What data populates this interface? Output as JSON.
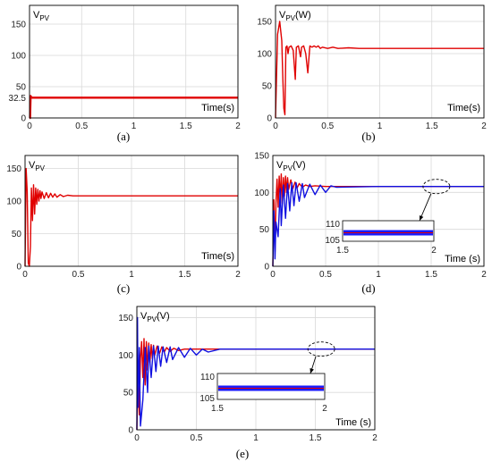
{
  "chart_data": [
    {
      "type": "line",
      "caption": "(a)",
      "ylabel": "V_PV",
      "xlabel": "Time(s)",
      "xlim": [
        0,
        2
      ],
      "ylim": [
        0,
        180
      ],
      "xticks": [
        "0",
        "0.5",
        "1",
        "1.5",
        "2"
      ],
      "yticks": [
        0,
        32.5,
        50,
        100,
        150
      ],
      "ytick_labels": [
        "0",
        "32.5",
        "50",
        "100",
        "150"
      ],
      "grid": true,
      "series": [
        {
          "color": "#e00000",
          "x": [
            0,
            0.005,
            0.01,
            0.02,
            0.5,
            1,
            1.5,
            2
          ],
          "y": [
            0,
            0,
            35,
            32.5,
            32.5,
            32.5,
            32.5,
            32.5
          ]
        }
      ]
    },
    {
      "type": "line",
      "caption": "(b)",
      "ylabel": "V_PV(W)",
      "xlabel": "Time(s)",
      "xlim": [
        0,
        2
      ],
      "ylim": [
        0,
        175
      ],
      "xticks": [
        "0",
        "0.5",
        "1",
        "1.5",
        "2"
      ],
      "yticks": [
        0,
        50,
        100,
        150
      ],
      "ytick_labels": [
        "0",
        "50",
        "100",
        "150"
      ],
      "grid": true,
      "series": [
        {
          "color": "#e00000",
          "x": [
            0,
            0.02,
            0.04,
            0.06,
            0.07,
            0.08,
            0.09,
            0.1,
            0.11,
            0.12,
            0.13,
            0.15,
            0.17,
            0.19,
            0.2,
            0.22,
            0.24,
            0.25,
            0.27,
            0.29,
            0.31,
            0.33,
            0.35,
            0.37,
            0.39,
            0.41,
            0.43,
            0.45,
            0.5,
            0.55,
            0.6,
            0.7,
            0.8,
            0.9,
            1,
            1.5,
            2
          ],
          "y": [
            0,
            130,
            150,
            120,
            60,
            15,
            5,
            110,
            112,
            100,
            110,
            112,
            105,
            60,
            110,
            112,
            95,
            110,
            112,
            100,
            70,
            112,
            110,
            112,
            110,
            112,
            108,
            110,
            108,
            110,
            108,
            109,
            108,
            108,
            108,
            108,
            108
          ]
        }
      ]
    },
    {
      "type": "line",
      "caption": "(c)",
      "ylabel": "V_PV",
      "xlabel": "Time(s)",
      "xlim": [
        0,
        2
      ],
      "ylim": [
        0,
        170
      ],
      "xticks": [
        "0",
        "0.5",
        "1",
        "1.5",
        "2"
      ],
      "yticks": [
        0,
        50,
        100,
        150
      ],
      "ytick_labels": [
        "0",
        "50",
        "100",
        "150"
      ],
      "grid": true,
      "series": [
        {
          "color": "#e00000",
          "x": [
            0,
            0.01,
            0.02,
            0.03,
            0.04,
            0.05,
            0.06,
            0.07,
            0.08,
            0.09,
            0.1,
            0.11,
            0.12,
            0.13,
            0.14,
            0.15,
            0.16,
            0.18,
            0.2,
            0.22,
            0.24,
            0.26,
            0.28,
            0.3,
            0.33,
            0.36,
            0.4,
            0.45,
            0.5,
            0.6,
            0.7,
            1,
            1.5,
            2
          ],
          "y": [
            0,
            150,
            115,
            5,
            0,
            30,
            120,
            70,
            125,
            80,
            120,
            95,
            118,
            100,
            116,
            104,
            114,
            104,
            113,
            105,
            112,
            106,
            111,
            106,
            110,
            107,
            109,
            108,
            108,
            108,
            108,
            108,
            108,
            108
          ]
        }
      ]
    },
    {
      "type": "line",
      "caption": "(d)",
      "ylabel": "V_PV(V)",
      "xlabel": "Time (s)",
      "xlim": [
        0,
        2
      ],
      "ylim": [
        0,
        150
      ],
      "xticks": [
        "0",
        "0.5",
        "1",
        "1.5",
        "2"
      ],
      "yticks": [
        0,
        50,
        100,
        150
      ],
      "ytick_labels": [
        "0",
        "50",
        "100",
        "150"
      ],
      "grid": true,
      "inset": {
        "xticks": [
          "1.5",
          "2"
        ],
        "yticks": [
          "105",
          "110"
        ]
      },
      "series": [
        {
          "color": "#e00000",
          "x": [
            0,
            0.01,
            0.02,
            0.03,
            0.04,
            0.05,
            0.06,
            0.07,
            0.08,
            0.09,
            0.1,
            0.11,
            0.12,
            0.13,
            0.14,
            0.15,
            0.17,
            0.19,
            0.21,
            0.23,
            0.25,
            0.28,
            0.31,
            0.35,
            0.4,
            0.5,
            0.6,
            1,
            1.5,
            2
          ],
          "y": [
            0,
            90,
            20,
            85,
            118,
            80,
            122,
            90,
            125,
            85,
            120,
            95,
            122,
            100,
            120,
            104,
            117,
            105,
            114,
            106,
            112,
            107,
            110,
            108,
            109,
            108,
            108,
            108,
            108,
            108
          ]
        },
        {
          "color": "#1010e0",
          "x": [
            0,
            0.01,
            0.02,
            0.03,
            0.05,
            0.07,
            0.08,
            0.1,
            0.12,
            0.14,
            0.16,
            0.18,
            0.2,
            0.22,
            0.25,
            0.28,
            0.3,
            0.35,
            0.4,
            0.45,
            0.5,
            0.55,
            0.6,
            1,
            1.5,
            2
          ],
          "y": [
            0,
            75,
            10,
            60,
            40,
            105,
            55,
            110,
            65,
            112,
            75,
            113,
            82,
            113,
            88,
            112,
            93,
            111,
            97,
            110,
            100,
            109,
            107,
            108,
            108,
            108
          ]
        }
      ]
    },
    {
      "type": "line",
      "caption": "(e)",
      "ylabel": "V_PV(V)",
      "xlabel": "Time (s)",
      "xlim": [
        0,
        2
      ],
      "ylim": [
        0,
        165
      ],
      "xticks": [
        "0",
        "0.5",
        "1",
        "1.5",
        "2"
      ],
      "yticks": [
        0,
        50,
        100,
        150
      ],
      "ytick_labels": [
        "0",
        "50",
        "100",
        "150"
      ],
      "grid": true,
      "inset": {
        "xticks": [
          "1.5",
          "2"
        ],
        "yticks": [
          "105",
          "110"
        ]
      },
      "series": [
        {
          "color": "#e00000",
          "x": [
            0,
            0.01,
            0.02,
            0.03,
            0.04,
            0.05,
            0.06,
            0.07,
            0.08,
            0.09,
            0.1,
            0.11,
            0.12,
            0.13,
            0.14,
            0.15,
            0.17,
            0.19,
            0.21,
            0.23,
            0.25,
            0.28,
            0.31,
            0.35,
            0.4,
            0.5,
            0.6,
            1,
            1.5,
            2
          ],
          "y": [
            0,
            80,
            20,
            95,
            118,
            70,
            122,
            60,
            118,
            80,
            116,
            90,
            114,
            95,
            113,
            100,
            112,
            102,
            111,
            104,
            110,
            105,
            109,
            106,
            108,
            108,
            108,
            108,
            108,
            108
          ]
        },
        {
          "color": "#1010e0",
          "x": [
            0,
            0.005,
            0.01,
            0.02,
            0.03,
            0.05,
            0.07,
            0.09,
            0.1,
            0.12,
            0.14,
            0.16,
            0.18,
            0.2,
            0.22,
            0.25,
            0.28,
            0.3,
            0.35,
            0.4,
            0.45,
            0.5,
            0.55,
            0.6,
            0.7,
            1,
            1.5,
            2
          ],
          "y": [
            0,
            150,
            30,
            110,
            5,
            40,
            110,
            50,
            112,
            70,
            112,
            78,
            112,
            85,
            111,
            90,
            111,
            94,
            110,
            97,
            109,
            100,
            108,
            104,
            108,
            108,
            108,
            108
          ]
        }
      ]
    }
  ]
}
